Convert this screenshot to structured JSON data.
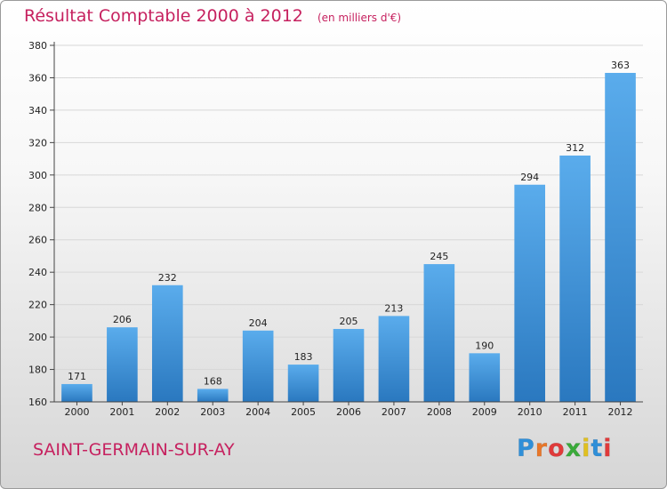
{
  "chart_data": {
    "type": "bar",
    "title": "Résultat Comptable 2000 à 2012",
    "subtitle": "(en milliers d'€)",
    "categories": [
      "2000",
      "2001",
      "2002",
      "2003",
      "2004",
      "2005",
      "2006",
      "2007",
      "2008",
      "2009",
      "2010",
      "2011",
      "2012"
    ],
    "values": [
      171,
      206,
      232,
      168,
      204,
      183,
      205,
      213,
      245,
      190,
      294,
      312,
      363
    ],
    "ylim": [
      160,
      380
    ],
    "yticks": [
      160,
      180,
      200,
      220,
      240,
      260,
      280,
      300,
      320,
      340,
      360,
      380
    ],
    "grid": true,
    "bar_color": "#3d8fd6"
  },
  "location": "SAINT-GERMAIN-SUR-AY",
  "logo": {
    "letters": [
      "P",
      "r",
      "o",
      "x",
      "i",
      "t",
      "i"
    ],
    "colors": [
      "#2f8fd8",
      "#e8772a",
      "#e03a3a",
      "#3aaa3a",
      "#e0c020",
      "#2f8fd8",
      "#e03a3a"
    ]
  }
}
